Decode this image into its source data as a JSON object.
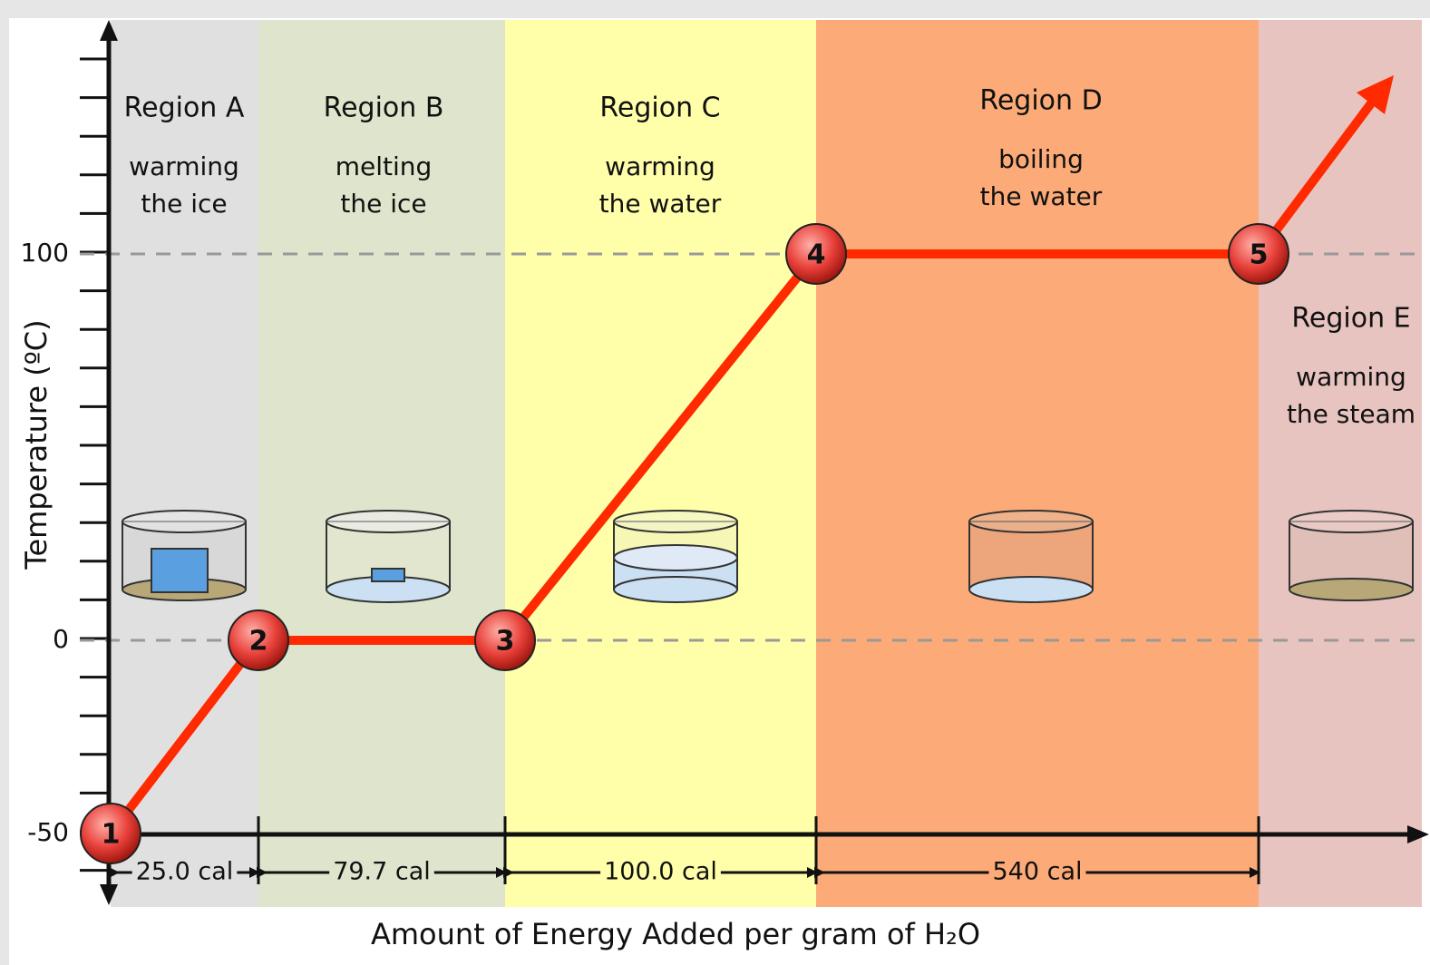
{
  "chart_data": {
    "type": "heating-curve",
    "y_label": "Temperature (ºC)",
    "x_label": "Amount of Energy Added per gram of H₂O",
    "yticks": [
      100,
      0,
      -50
    ],
    "regions": [
      {
        "name": "Region A",
        "lines": [
          "warming",
          "the ice"
        ],
        "color": "#e0e0e0"
      },
      {
        "name": "Region B",
        "lines": [
          "melting",
          "the ice"
        ],
        "color": "#dfe5cc"
      },
      {
        "name": "Region C",
        "lines": [
          "warming",
          "the water"
        ],
        "color": "#ffffaa"
      },
      {
        "name": "Region D",
        "lines": [
          "boiling",
          "the water"
        ],
        "color": "#fcab78"
      },
      {
        "name": "Region E",
        "lines": [
          "warming",
          "the steam"
        ],
        "color": "#e8c4c0"
      }
    ],
    "energies": [
      "25.0 cal",
      "79.7 cal",
      "100.0 cal",
      "540 cal"
    ],
    "points": [
      {
        "label": "1",
        "temperature": -50
      },
      {
        "label": "2",
        "temperature": 0
      },
      {
        "label": "3",
        "temperature": 0
      },
      {
        "label": "4",
        "temperature": 100
      },
      {
        "label": "5",
        "temperature": 100
      }
    ],
    "line_color": "#ff2a00"
  }
}
